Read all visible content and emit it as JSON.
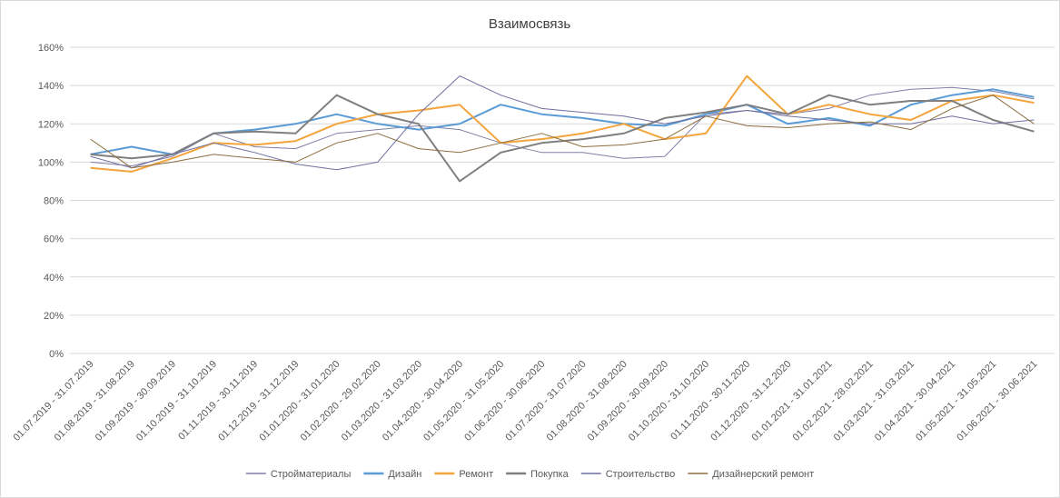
{
  "chart_data": {
    "type": "line",
    "title": "Взаимосвязь",
    "xlabel": "",
    "ylabel": "",
    "ylim": [
      0,
      160
    ],
    "y_ticks": [
      "0%",
      "20%",
      "40%",
      "60%",
      "80%",
      "100%",
      "120%",
      "140%",
      "160%"
    ],
    "y_tick_values": [
      0,
      20,
      40,
      60,
      80,
      100,
      120,
      140,
      160
    ],
    "grid": true,
    "legend_position": "bottom",
    "categories": [
      "01.07.2019 - 31.07.2019",
      "01.08.2019 - 31.08.2019",
      "01.09.2019 - 30.09.2019",
      "01.10.2019 - 31.10.2019",
      "01.11.2019 - 30.11.2019",
      "01.12.2019 - 31.12.2019",
      "01.01.2020 - 31.01.2020",
      "01.02.2020 - 29.02.2020",
      "01.03.2020 - 31.03.2020",
      "01.04.2020 - 30.04.2020",
      "01.05.2020 - 31.05.2020",
      "01.06.2020 - 30.06.2020",
      "01.07.2020 - 31.07.2020",
      "01.08.2020 - 31.08.2020",
      "01.09.2020 - 30.09.2020",
      "01.10.2020 - 31.10.2020",
      "01.11.2020 - 30.11.2020",
      "01.12.2020 - 31.12.2020",
      "01.01.2021 - 31.01.2021",
      "01.02.2021 - 28.02.2021",
      "01.03.2021 - 31.03.2021",
      "01.04.2021 - 30.04.2021",
      "01.05.2021 - 31.05.2021",
      "01.06.2021 - 30.06.2021"
    ],
    "series": [
      {
        "name": "Стройматериалы",
        "color": "#7f7fa6",
        "width": 1,
        "values": [
          100,
          98,
          103,
          115,
          108,
          107,
          115,
          117,
          119,
          117,
          110,
          105,
          105,
          102,
          103,
          125,
          127,
          125,
          128,
          135,
          138,
          139,
          137,
          133
        ]
      },
      {
        "name": "Дизайн",
        "color": "#5b9bd5",
        "width": 2,
        "values": [
          104,
          108,
          104,
          115,
          117,
          120,
          125,
          120,
          117,
          120,
          130,
          125,
          123,
          120,
          119,
          125,
          130,
          120,
          123,
          119,
          130,
          135,
          138,
          134
        ]
      },
      {
        "name": "Ремонт",
        "color": "#f4a43d",
        "width": 2,
        "values": [
          97,
          95,
          102,
          110,
          109,
          111,
          120,
          125,
          127,
          130,
          110,
          112,
          115,
          120,
          112,
          115,
          145,
          125,
          130,
          125,
          122,
          132,
          135,
          131
        ]
      },
      {
        "name": "Покупка",
        "color": "#7f7f7f",
        "width": 2,
        "values": [
          104,
          102,
          104,
          115,
          116,
          115,
          135,
          125,
          120,
          90,
          105,
          110,
          112,
          115,
          123,
          126,
          130,
          125,
          135,
          130,
          132,
          132,
          122,
          116
        ]
      },
      {
        "name": "Строительство",
        "color": "#6f6fa0",
        "width": 1,
        "values": [
          103,
          97,
          104,
          110,
          105,
          99,
          96,
          100,
          125,
          145,
          135,
          128,
          126,
          124,
          120,
          124,
          127,
          124,
          122,
          120,
          120,
          124,
          120,
          122
        ]
      },
      {
        "name": "Дизайнерский ремонт",
        "color": "#8c6d3f",
        "width": 1,
        "values": [
          112,
          97,
          100,
          104,
          102,
          100,
          110,
          115,
          107,
          105,
          110,
          115,
          108,
          109,
          112,
          124,
          119,
          118,
          120,
          121,
          117,
          128,
          135,
          120
        ]
      }
    ]
  }
}
